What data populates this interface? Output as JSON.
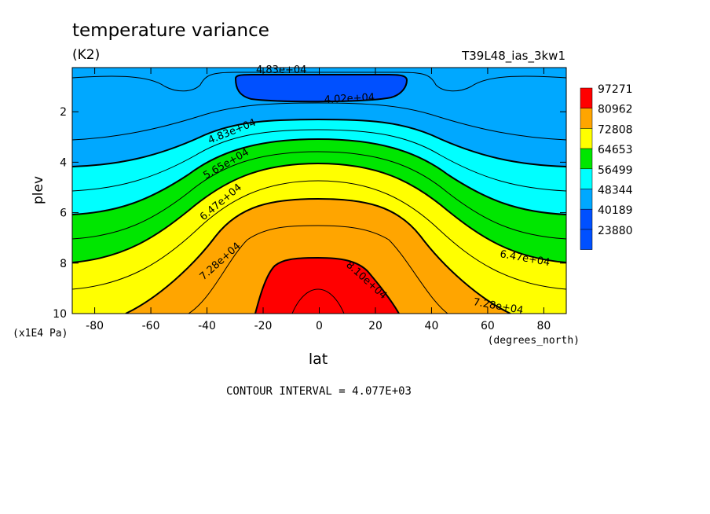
{
  "chart_data": {
    "type": "contour",
    "title": "temperature variance",
    "units": "(K2)",
    "run_label": "T39L48_ias_3kw1",
    "xlabel": "lat",
    "x_units": "(degrees_north)",
    "ylabel": "plev",
    "y_units": "(x1E4 Pa)",
    "xlim": [
      -88,
      88
    ],
    "ylim": [
      10,
      0.25
    ],
    "x_ticks": [
      -80,
      -60,
      -40,
      -20,
      0,
      20,
      40,
      60,
      80
    ],
    "x_tick_labels": [
      "-80",
      "-60",
      "-40",
      "-20",
      "0",
      "20",
      "40",
      "60",
      "80"
    ],
    "y_ticks": [
      2,
      4,
      6,
      8,
      10
    ],
    "y_tick_labels": [
      "2",
      "4",
      "6",
      "8",
      "10"
    ],
    "contour_interval_text": "CONTOUR INTERVAL = 4.077E+03",
    "fill_levels": [
      {
        "label": "97271",
        "color": "#ff0000"
      },
      {
        "label": "80962",
        "color": "#ffa500"
      },
      {
        "label": "72808",
        "color": "#ffff00"
      },
      {
        "label": "64653",
        "color": "#00e600"
      },
      {
        "label": "56499",
        "color": "#00ffff"
      },
      {
        "label": "48344",
        "color": "#00a8ff"
      },
      {
        "label": "40189",
        "color": "#0050ff"
      },
      {
        "label": "23880",
        "color": "#0050ff"
      }
    ],
    "contour_labels": [
      "4.83e+04",
      "4.02e+04",
      "4.83e+04",
      "5.65e+04",
      "6.47e+04",
      "7.28e+04",
      "8.10e+04",
      "6.47e+04",
      "7.28e+04"
    ]
  }
}
